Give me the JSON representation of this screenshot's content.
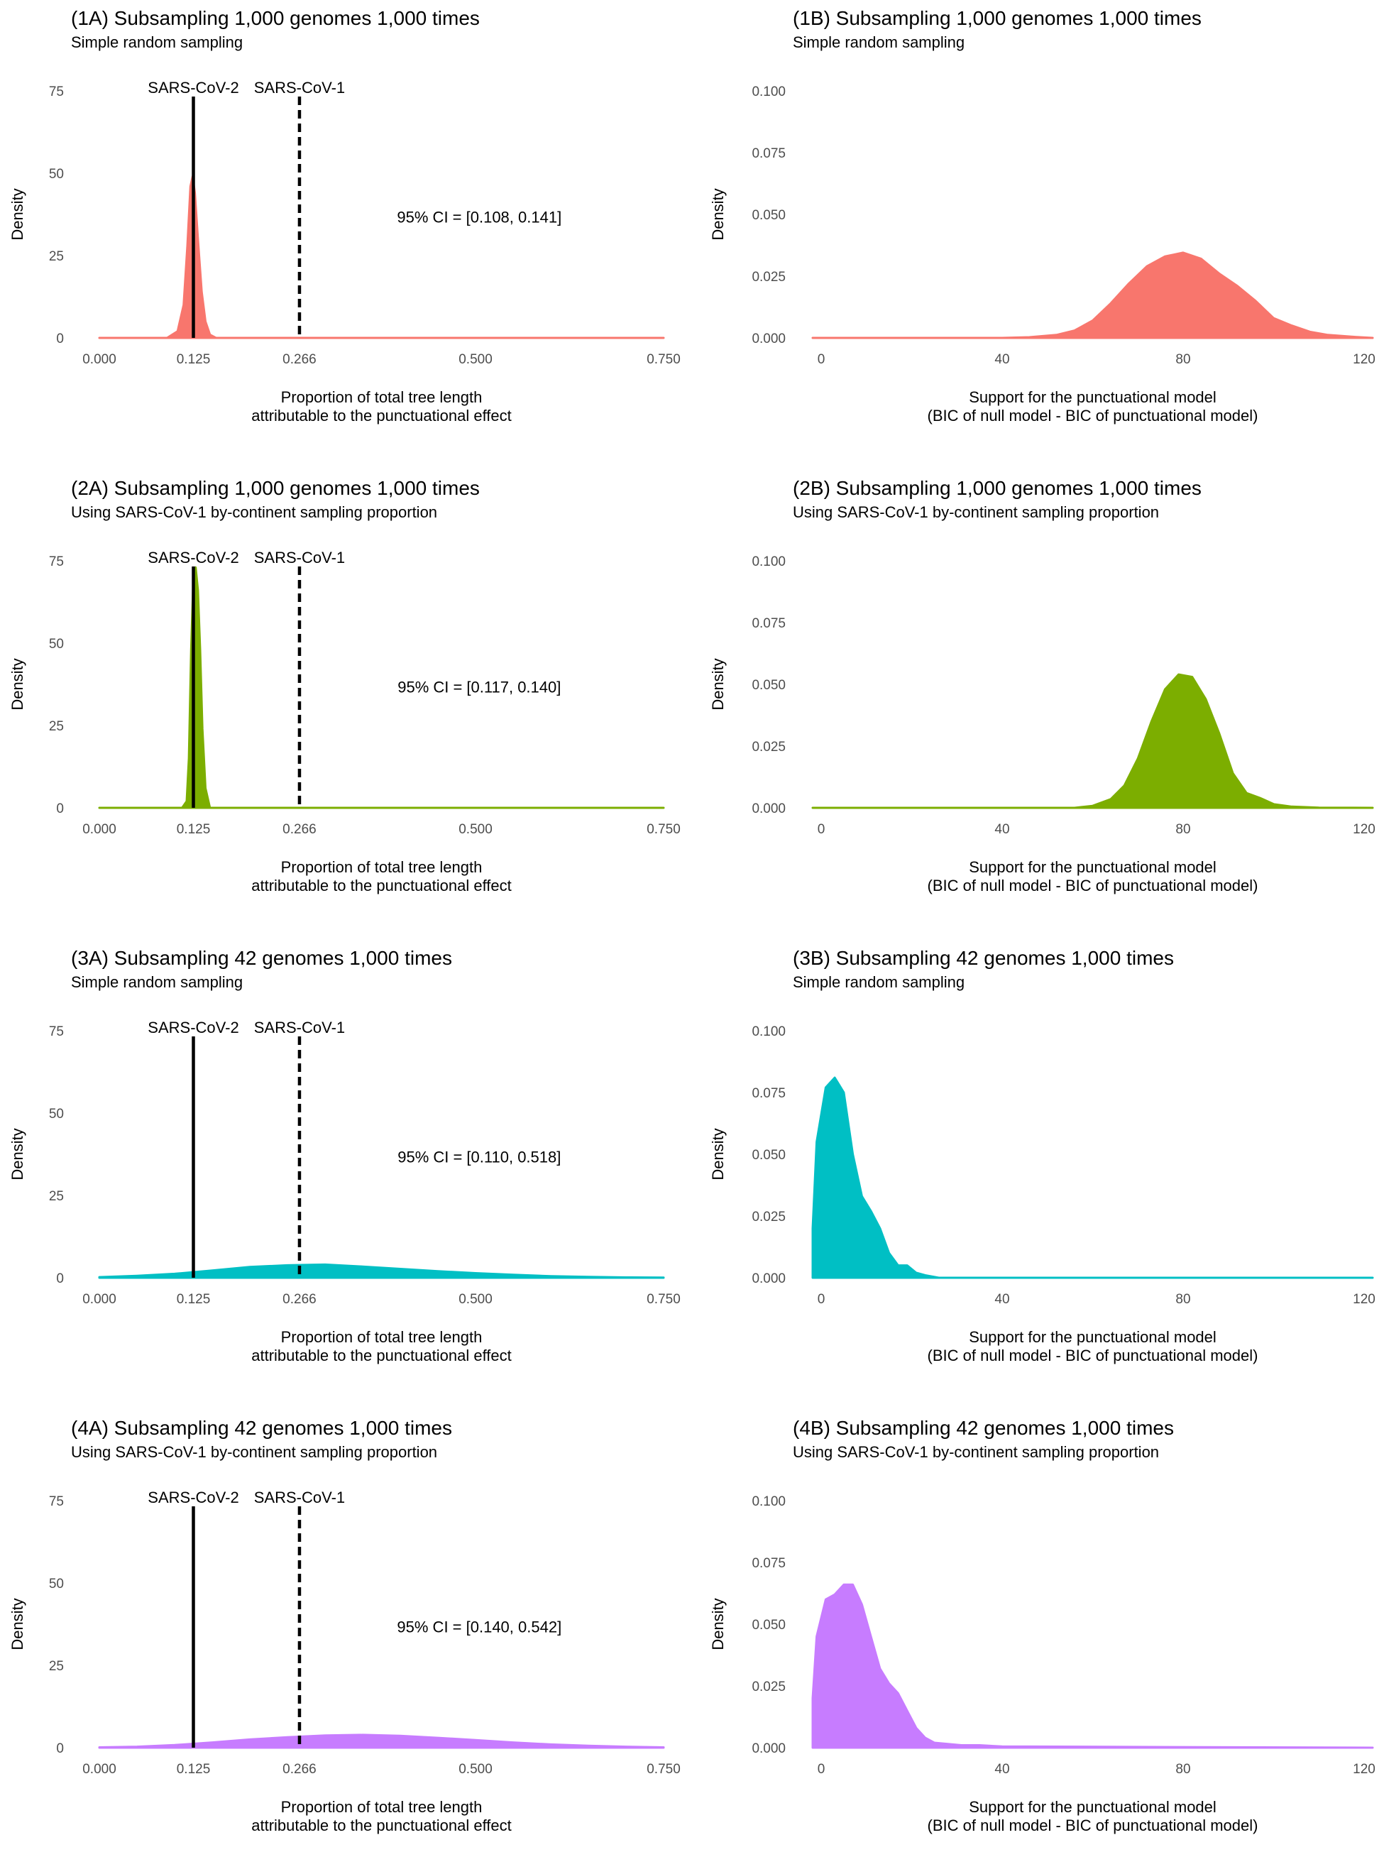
{
  "chart_data": [
    {
      "id": "1A",
      "type": "area",
      "title": "(1A) Subsampling 1,000 genomes 1,000 times",
      "subtitle": "Simple random sampling",
      "xlabel": [
        "Proportion of total tree length",
        "attributable to the punctuational effect"
      ],
      "ylabel": "Density",
      "xlim": [
        0,
        0.75
      ],
      "ylim": [
        0,
        75
      ],
      "xticks": [
        0,
        0.125,
        0.266,
        0.5,
        0.75
      ],
      "xtick_labels": [
        "0.000",
        "0.125",
        "0.266",
        "0.500",
        "0.750"
      ],
      "yticks": [
        0,
        25,
        50,
        75
      ],
      "ytick_labels": [
        "0",
        "25",
        "50",
        "75"
      ],
      "color": "#F8766D",
      "density": {
        "x": [
          0,
          0.09,
          0.104,
          0.112,
          0.117,
          0.121,
          0.124,
          0.127,
          0.131,
          0.136,
          0.141,
          0.147,
          0.155,
          0.3,
          0.75
        ],
        "y": [
          0,
          0,
          2,
          10,
          28,
          46,
          49,
          44,
          30,
          14,
          5,
          1,
          0,
          0,
          0
        ]
      },
      "vlines": [
        {
          "x": 0.125,
          "label": "SARS-CoV-2",
          "style": "solid"
        },
        {
          "x": 0.266,
          "label": "SARS-CoV-1",
          "style": "dashed"
        }
      ],
      "annotation": {
        "text": "95% CI = [0.108, 0.141]",
        "x": 0.505,
        "y": 35
      }
    },
    {
      "id": "1B",
      "type": "area",
      "title": "(1B) Subsampling 1,000 genomes 1,000 times",
      "subtitle": "Simple random sampling",
      "xlabel": [
        "Support for the punctuational model",
        "(BIC of null model - BIC of punctuational model)"
      ],
      "ylabel": "Density",
      "xlim": [
        0,
        120
      ],
      "ylim": [
        0,
        0.1
      ],
      "xticks": [
        0,
        40,
        80,
        120
      ],
      "xtick_labels": [
        "0",
        "40",
        "80",
        "120"
      ],
      "yticks": [
        0,
        0.025,
        0.05,
        0.075,
        0.1
      ],
      "ytick_labels": [
        "0.000",
        "0.025",
        "0.050",
        "0.075",
        "0.100"
      ],
      "color": "#F8766D",
      "density": {
        "x": [
          -5,
          40,
          46,
          52,
          56,
          60,
          64,
          68,
          72,
          76,
          80,
          84,
          88,
          92,
          96,
          100,
          104,
          108,
          112,
          118,
          125
        ],
        "y": [
          0,
          0,
          0.0003,
          0.0012,
          0.003,
          0.007,
          0.014,
          0.022,
          0.029,
          0.033,
          0.0345,
          0.032,
          0.026,
          0.021,
          0.015,
          0.008,
          0.005,
          0.0025,
          0.0012,
          0.0004,
          0
        ]
      },
      "vlines": [],
      "annotation": null
    },
    {
      "id": "2A",
      "type": "area",
      "title": "(2A) Subsampling 1,000 genomes 1,000 times",
      "subtitle": "Using SARS-CoV-1 by-continent sampling proportion",
      "xlabel": [
        "Proportion of total tree length",
        "attributable to the punctuational effect"
      ],
      "ylabel": "Density",
      "xlim": [
        0,
        0.75
      ],
      "ylim": [
        0,
        75
      ],
      "xticks": [
        0,
        0.125,
        0.266,
        0.5,
        0.75
      ],
      "xtick_labels": [
        "0.000",
        "0.125",
        "0.266",
        "0.500",
        "0.750"
      ],
      "yticks": [
        0,
        25,
        50,
        75
      ],
      "ytick_labels": [
        "0",
        "25",
        "50",
        "75"
      ],
      "color": "#7CAE00",
      "density": {
        "x": [
          0,
          0.11,
          0.116,
          0.119,
          0.122,
          0.125,
          0.128,
          0.131,
          0.134,
          0.137,
          0.141,
          0.147,
          0.3,
          0.75
        ],
        "y": [
          0,
          0,
          2,
          15,
          48,
          70,
          73,
          66,
          48,
          24,
          6,
          0,
          0,
          0
        ]
      },
      "vlines": [
        {
          "x": 0.125,
          "label": "SARS-CoV-2",
          "style": "solid"
        },
        {
          "x": 0.266,
          "label": "SARS-CoV-1",
          "style": "dashed"
        }
      ],
      "annotation": {
        "text": "95% CI = [0.117, 0.140]",
        "x": 0.505,
        "y": 35
      }
    },
    {
      "id": "2B",
      "type": "area",
      "title": "(2B) Subsampling 1,000 genomes 1,000 times",
      "subtitle": "Using SARS-CoV-1 by-continent sampling proportion",
      "xlabel": [
        "Support for the punctuational model",
        "(BIC of null model - BIC of punctuational model)"
      ],
      "ylabel": "Density",
      "xlim": [
        0,
        120
      ],
      "ylim": [
        0,
        0.1
      ],
      "xticks": [
        0,
        40,
        80,
        120
      ],
      "xtick_labels": [
        "0",
        "40",
        "80",
        "120"
      ],
      "yticks": [
        0,
        0.025,
        0.05,
        0.075,
        0.1
      ],
      "ytick_labels": [
        "0.000",
        "0.025",
        "0.050",
        "0.075",
        "0.100"
      ],
      "color": "#7CAE00",
      "density": {
        "x": [
          -5,
          56,
          60,
          64,
          67,
          70,
          73,
          76,
          79,
          82,
          85,
          88,
          91,
          94,
          97,
          100,
          104,
          110,
          125
        ],
        "y": [
          0,
          0,
          0.0008,
          0.0035,
          0.009,
          0.02,
          0.035,
          0.048,
          0.054,
          0.053,
          0.044,
          0.03,
          0.014,
          0.006,
          0.004,
          0.0015,
          0.0005,
          0.0001,
          0
        ]
      },
      "vlines": [],
      "annotation": null
    },
    {
      "id": "3A",
      "type": "area",
      "title": "(3A) Subsampling 42 genomes 1,000 times",
      "subtitle": "Simple random sampling",
      "xlabel": [
        "Proportion of total tree length",
        "attributable to the punctuational effect"
      ],
      "ylabel": "Density",
      "xlim": [
        0,
        0.75
      ],
      "ylim": [
        0,
        75
      ],
      "xticks": [
        0,
        0.125,
        0.266,
        0.5,
        0.75
      ],
      "xtick_labels": [
        "0.000",
        "0.125",
        "0.266",
        "0.500",
        "0.750"
      ],
      "yticks": [
        0,
        25,
        50,
        75
      ],
      "ytick_labels": [
        "0",
        "25",
        "50",
        "75"
      ],
      "color": "#00BFC4",
      "density": {
        "x": [
          0,
          0.05,
          0.1,
          0.15,
          0.2,
          0.25,
          0.3,
          0.35,
          0.4,
          0.45,
          0.5,
          0.55,
          0.6,
          0.65,
          0.7,
          0.75
        ],
        "y": [
          0.2,
          0.6,
          1.2,
          2.2,
          3.3,
          3.8,
          4.0,
          3.4,
          2.7,
          2.0,
          1.4,
          0.9,
          0.5,
          0.25,
          0.1,
          0.05
        ]
      },
      "vlines": [
        {
          "x": 0.125,
          "label": "SARS-CoV-2",
          "style": "solid"
        },
        {
          "x": 0.266,
          "label": "SARS-CoV-1",
          "style": "dashed"
        }
      ],
      "annotation": {
        "text": "95% CI = [0.110, 0.518]",
        "x": 0.505,
        "y": 35
      }
    },
    {
      "id": "3B",
      "type": "area",
      "title": "(3B) Subsampling 42 genomes 1,000 times",
      "subtitle": "Simple random sampling",
      "xlabel": [
        "Support for the punctuational model",
        "(BIC of null model - BIC of punctuational model)"
      ],
      "ylabel": "Density",
      "xlim": [
        0,
        120
      ],
      "ylim": [
        0,
        0.1
      ],
      "xticks": [
        0,
        40,
        80,
        120
      ],
      "xtick_labels": [
        "0",
        "40",
        "80",
        "120"
      ],
      "yticks": [
        0,
        0.025,
        0.05,
        0.075,
        0.1
      ],
      "ytick_labels": [
        "0.000",
        "0.025",
        "0.050",
        "0.075",
        "0.100"
      ],
      "color": "#00BFC4",
      "density": {
        "x": [
          -5,
          -4.5,
          -3,
          -1,
          1,
          3,
          5,
          7,
          9,
          11,
          13,
          15,
          17,
          19,
          21,
          23,
          26,
          30,
          125
        ],
        "y": [
          0,
          0.004,
          0.02,
          0.055,
          0.077,
          0.081,
          0.075,
          0.05,
          0.033,
          0.027,
          0.02,
          0.01,
          0.005,
          0.005,
          0.002,
          0.001,
          0,
          0,
          0
        ]
      },
      "vlines": [],
      "annotation": null
    },
    {
      "id": "4A",
      "type": "area",
      "title": "(4A) Subsampling 42 genomes 1,000 times",
      "subtitle": "Using SARS-CoV-1 by-continent sampling proportion",
      "xlabel": [
        "Proportion of total tree length",
        "attributable to the punctuational effect"
      ],
      "ylabel": "Density",
      "xlim": [
        0,
        0.75
      ],
      "ylim": [
        0,
        75
      ],
      "xticks": [
        0,
        0.125,
        0.266,
        0.5,
        0.75
      ],
      "xtick_labels": [
        "0.000",
        "0.125",
        "0.266",
        "0.500",
        "0.750"
      ],
      "yticks": [
        0,
        25,
        50,
        75
      ],
      "ytick_labels": [
        "0",
        "25",
        "50",
        "75"
      ],
      "color": "#C77CFF",
      "density": {
        "x": [
          0,
          0.05,
          0.1,
          0.15,
          0.2,
          0.25,
          0.3,
          0.35,
          0.4,
          0.45,
          0.5,
          0.55,
          0.6,
          0.65,
          0.7,
          0.75
        ],
        "y": [
          0.1,
          0.3,
          0.8,
          1.6,
          2.5,
          3.2,
          3.7,
          3.9,
          3.6,
          3.0,
          2.3,
          1.6,
          1.0,
          0.6,
          0.3,
          0.1
        ]
      },
      "vlines": [
        {
          "x": 0.125,
          "label": "SARS-CoV-2",
          "style": "solid"
        },
        {
          "x": 0.266,
          "label": "SARS-CoV-1",
          "style": "dashed"
        }
      ],
      "annotation": {
        "text": "95% CI = [0.140, 0.542]",
        "x": 0.505,
        "y": 35
      }
    },
    {
      "id": "4B",
      "type": "area",
      "title": "(4B) Subsampling 42 genomes 1,000 times",
      "subtitle": "Using SARS-CoV-1 by-continent sampling proportion",
      "xlabel": [
        "Support for the punctuational model",
        "(BIC of null model - BIC of punctuational model)"
      ],
      "ylabel": "Density",
      "xlim": [
        0,
        120
      ],
      "ylim": [
        0,
        0.1
      ],
      "xticks": [
        0,
        40,
        80,
        120
      ],
      "xtick_labels": [
        "0",
        "40",
        "80",
        "120"
      ],
      "yticks": [
        0,
        0.025,
        0.05,
        0.075,
        0.1
      ],
      "ytick_labels": [
        "0.000",
        "0.025",
        "0.050",
        "0.075",
        "0.100"
      ],
      "color": "#C77CFF",
      "density": {
        "x": [
          -5,
          -4.5,
          -3,
          -1,
          1,
          3,
          5,
          7,
          9,
          11,
          13,
          15,
          17,
          19,
          21,
          23,
          25,
          28,
          31,
          35,
          40,
          125
        ],
        "y": [
          0,
          0.003,
          0.02,
          0.045,
          0.06,
          0.062,
          0.066,
          0.066,
          0.058,
          0.045,
          0.032,
          0.026,
          0.022,
          0.015,
          0.008,
          0.004,
          0.002,
          0.0015,
          0.001,
          0.001,
          0.0005,
          0
        ]
      },
      "vlines": [],
      "annotation": null
    }
  ]
}
